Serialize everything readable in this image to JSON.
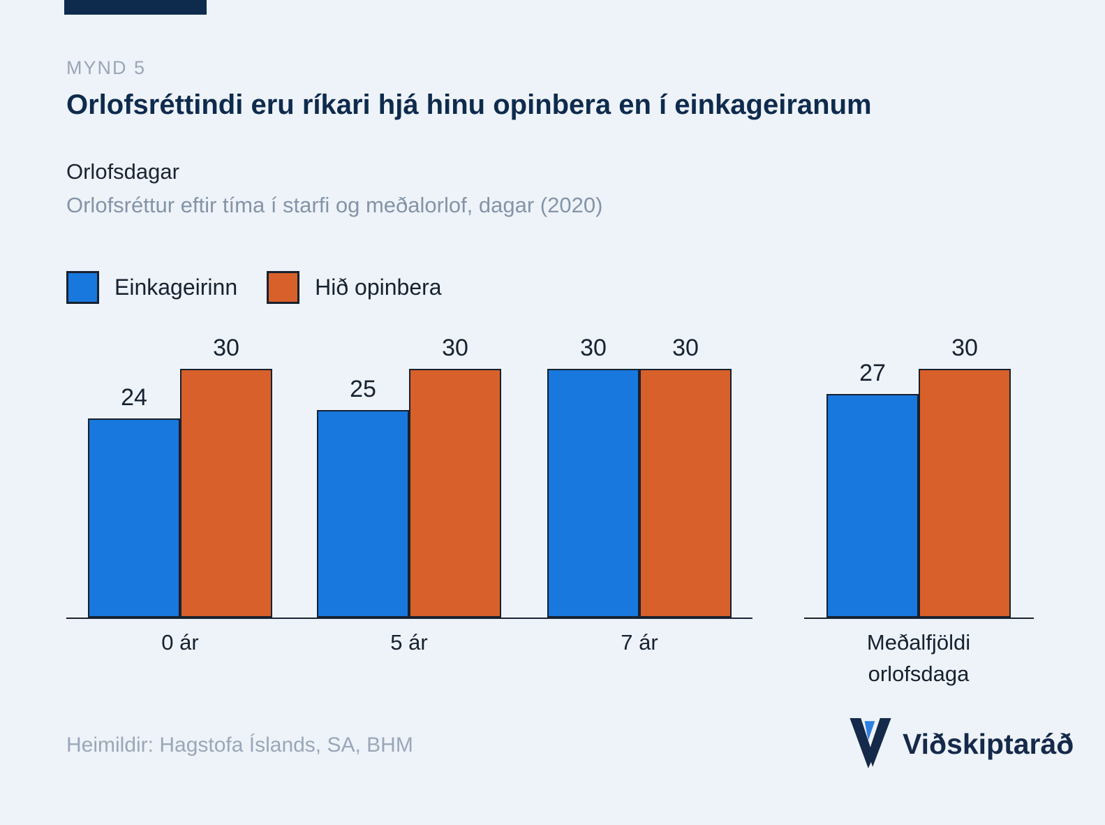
{
  "figure_label": "MYND 5",
  "title": "Orlofsréttindi eru ríkari hjá hinu opinbera en í einkageiranum",
  "chart_heading": "Orlofsdagar",
  "chart_subtitle": "Orlofsréttur eftir tíma í starfi og meðalorlof, dagar (2020)",
  "source": "Heimildir: Hagstofa Íslands, SA, BHM",
  "logo_text": "Viðskiptaráð",
  "colors": {
    "background": "#eef3f9",
    "navy": "#0e2b4d",
    "private_blue": "#1878dd",
    "public_orange": "#d8602a",
    "bar_outline": "#16212f",
    "muted_gray": "#8494a8"
  },
  "chart_data": {
    "type": "bar",
    "title": "Orlofsdagar",
    "subtitle": "Orlofsréttur eftir tíma í starfi og meðalorlof, dagar (2020)",
    "categories": [
      "0 ár",
      "5 ár",
      "7 ár",
      "Meðalfjöldi orlofsdaga"
    ],
    "series": [
      {
        "name": "Einkageirinn",
        "color": "#1878dd",
        "values": [
          24,
          25,
          30,
          27
        ]
      },
      {
        "name": "Hið opinbera",
        "color": "#d8602a",
        "values": [
          30,
          30,
          30,
          30
        ]
      }
    ],
    "ylim": [
      0,
      30
    ],
    "grid": false,
    "legend_position": "top-left",
    "value_labels": true
  }
}
